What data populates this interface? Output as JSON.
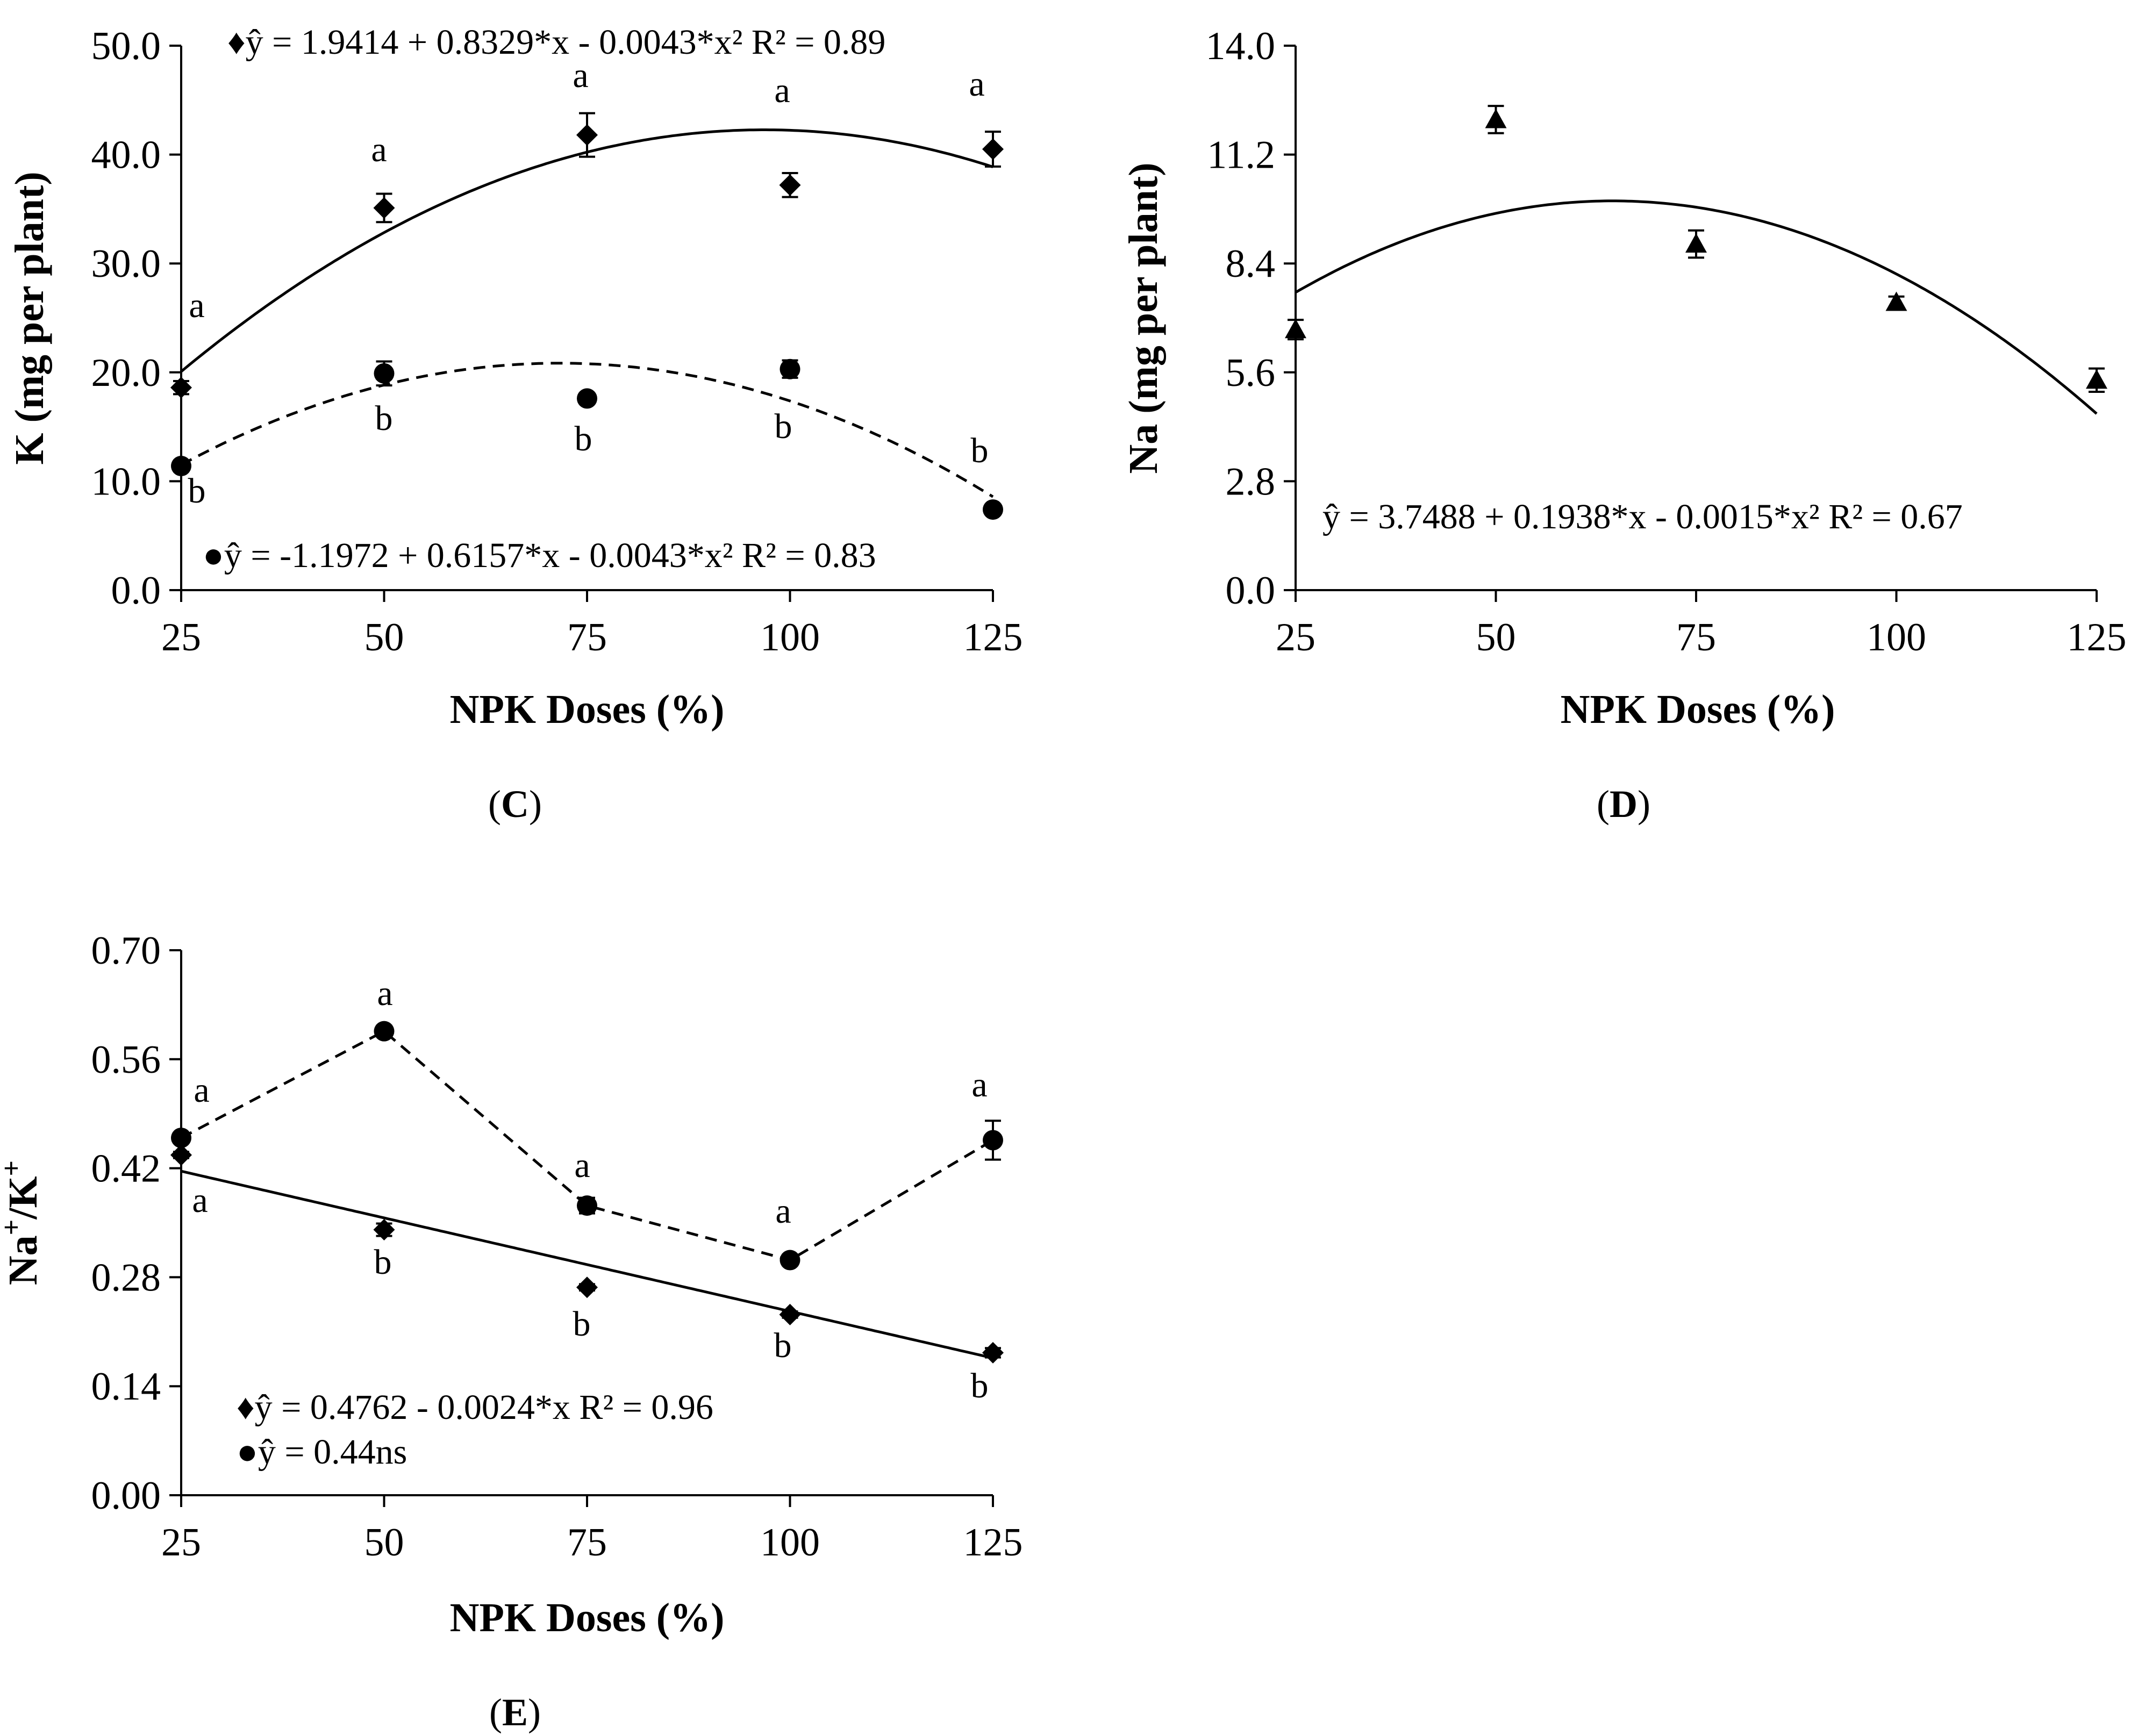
{
  "chart_data": [
    {
      "panel": "C",
      "type": "scatter",
      "panel_label": "(C)",
      "panel_label_parts": [
        "(",
        "C",
        ")"
      ],
      "xlabel": "NPK Doses (%)",
      "ylabel": "K (mg per plant)",
      "xlim": [
        25,
        125
      ],
      "ylim": [
        0,
        50
      ],
      "xticks": [
        25,
        50,
        75,
        100,
        125
      ],
      "yticks": [
        "0.0",
        "10.0",
        "20.0",
        "30.0",
        "40.0",
        "50.0"
      ],
      "x": [
        25,
        50,
        75,
        100,
        125
      ],
      "series": [
        {
          "name": "diamond",
          "marker": "diamond",
          "values": [
            18.6,
            35.1,
            41.8,
            37.2,
            40.5
          ],
          "errors": [
            0.6,
            1.3,
            2.0,
            1.1,
            1.6
          ],
          "letters": [
            "a",
            "a",
            "a",
            "a",
            "a"
          ],
          "fit": {
            "coef": [
              1.9414,
              0.8329,
              -0.0043
            ],
            "dashed": false
          },
          "equation": "♦ŷ = 1.9414 + 0.8329*x - 0.0043*x² R² = 0.89"
        },
        {
          "name": "circle",
          "marker": "circle",
          "values": [
            11.4,
            19.9,
            17.6,
            20.3,
            7.4
          ],
          "errors": [
            0.5,
            1.1,
            0.4,
            0.8,
            0.3
          ],
          "letters": [
            "b",
            "b",
            "b",
            "b",
            "b"
          ],
          "fit": {
            "coef": [
              -1.1972,
              0.6157,
              -0.0043
            ],
            "dashed": true
          },
          "equation": "●ŷ = -1.1972 + 0.6157*x - 0.0043*x² R² = 0.83"
        }
      ]
    },
    {
      "panel": "D",
      "type": "scatter",
      "panel_label": "(D)",
      "panel_label_parts": [
        "(",
        "D",
        ")"
      ],
      "xlabel": "NPK Doses (%)",
      "ylabel": "Na (mg per plant)",
      "xlim": [
        25,
        125
      ],
      "ylim": [
        0,
        14
      ],
      "xticks": [
        25,
        50,
        75,
        100,
        125
      ],
      "yticks": [
        "0.0",
        "2.8",
        "5.6",
        "8.4",
        "11.2",
        "14.0"
      ],
      "x": [
        25,
        50,
        75,
        100,
        125
      ],
      "series": [
        {
          "name": "triangle",
          "marker": "triangle",
          "values": [
            6.7,
            12.1,
            8.9,
            7.4,
            5.4
          ],
          "errors": [
            0.25,
            0.35,
            0.35,
            0.15,
            0.3
          ],
          "letters": [],
          "fit": {
            "coef": [
              3.7488,
              0.1938,
              -0.0015
            ],
            "dashed": false
          },
          "equation": "ŷ = 3.7488 + 0.1938*x - 0.0015*x² R² = 0.67"
        }
      ]
    },
    {
      "panel": "E",
      "type": "scatter",
      "panel_label": "(E)",
      "panel_label_parts": [
        "(",
        "E",
        ")"
      ],
      "xlabel": "NPK Doses (%)",
      "ylabel": "Na+/K+",
      "ylabel_parts": {
        "base1": "Na",
        "sup1": "+",
        "sep": "/K",
        "sup2": "+"
      },
      "xlim": [
        25,
        125
      ],
      "ylim": [
        0,
        0.7
      ],
      "xticks": [
        25,
        50,
        75,
        100,
        125
      ],
      "yticks": [
        "0.00",
        "0.14",
        "0.28",
        "0.42",
        "0.56",
        "0.70"
      ],
      "x": [
        25,
        50,
        75,
        100,
        125
      ],
      "series": [
        {
          "name": "diamond",
          "marker": "diamond",
          "values": [
            0.437,
            0.341,
            0.267,
            0.232,
            0.183
          ],
          "errors": [
            0.004,
            0.008,
            0.004,
            0.004,
            0.006
          ],
          "letters": [
            "a",
            "b",
            "b",
            "b",
            "b"
          ],
          "fit": {
            "coef": [
              0.4762,
              -0.0024
            ],
            "dashed": false
          },
          "equation": "♦ŷ = 0.4762 - 0.0024*x R² = 0.96"
        },
        {
          "name": "circle",
          "marker": "circle",
          "values": [
            0.459,
            0.596,
            0.372,
            0.302,
            0.456
          ],
          "errors": [
            0.006,
            0.007,
            0.01,
            0.007,
            0.025
          ],
          "letters": [
            "a",
            "a",
            "a",
            "a",
            "a"
          ],
          "connect": true,
          "dashed": true,
          "equation": "●ŷ = 0.44ns"
        }
      ]
    }
  ]
}
